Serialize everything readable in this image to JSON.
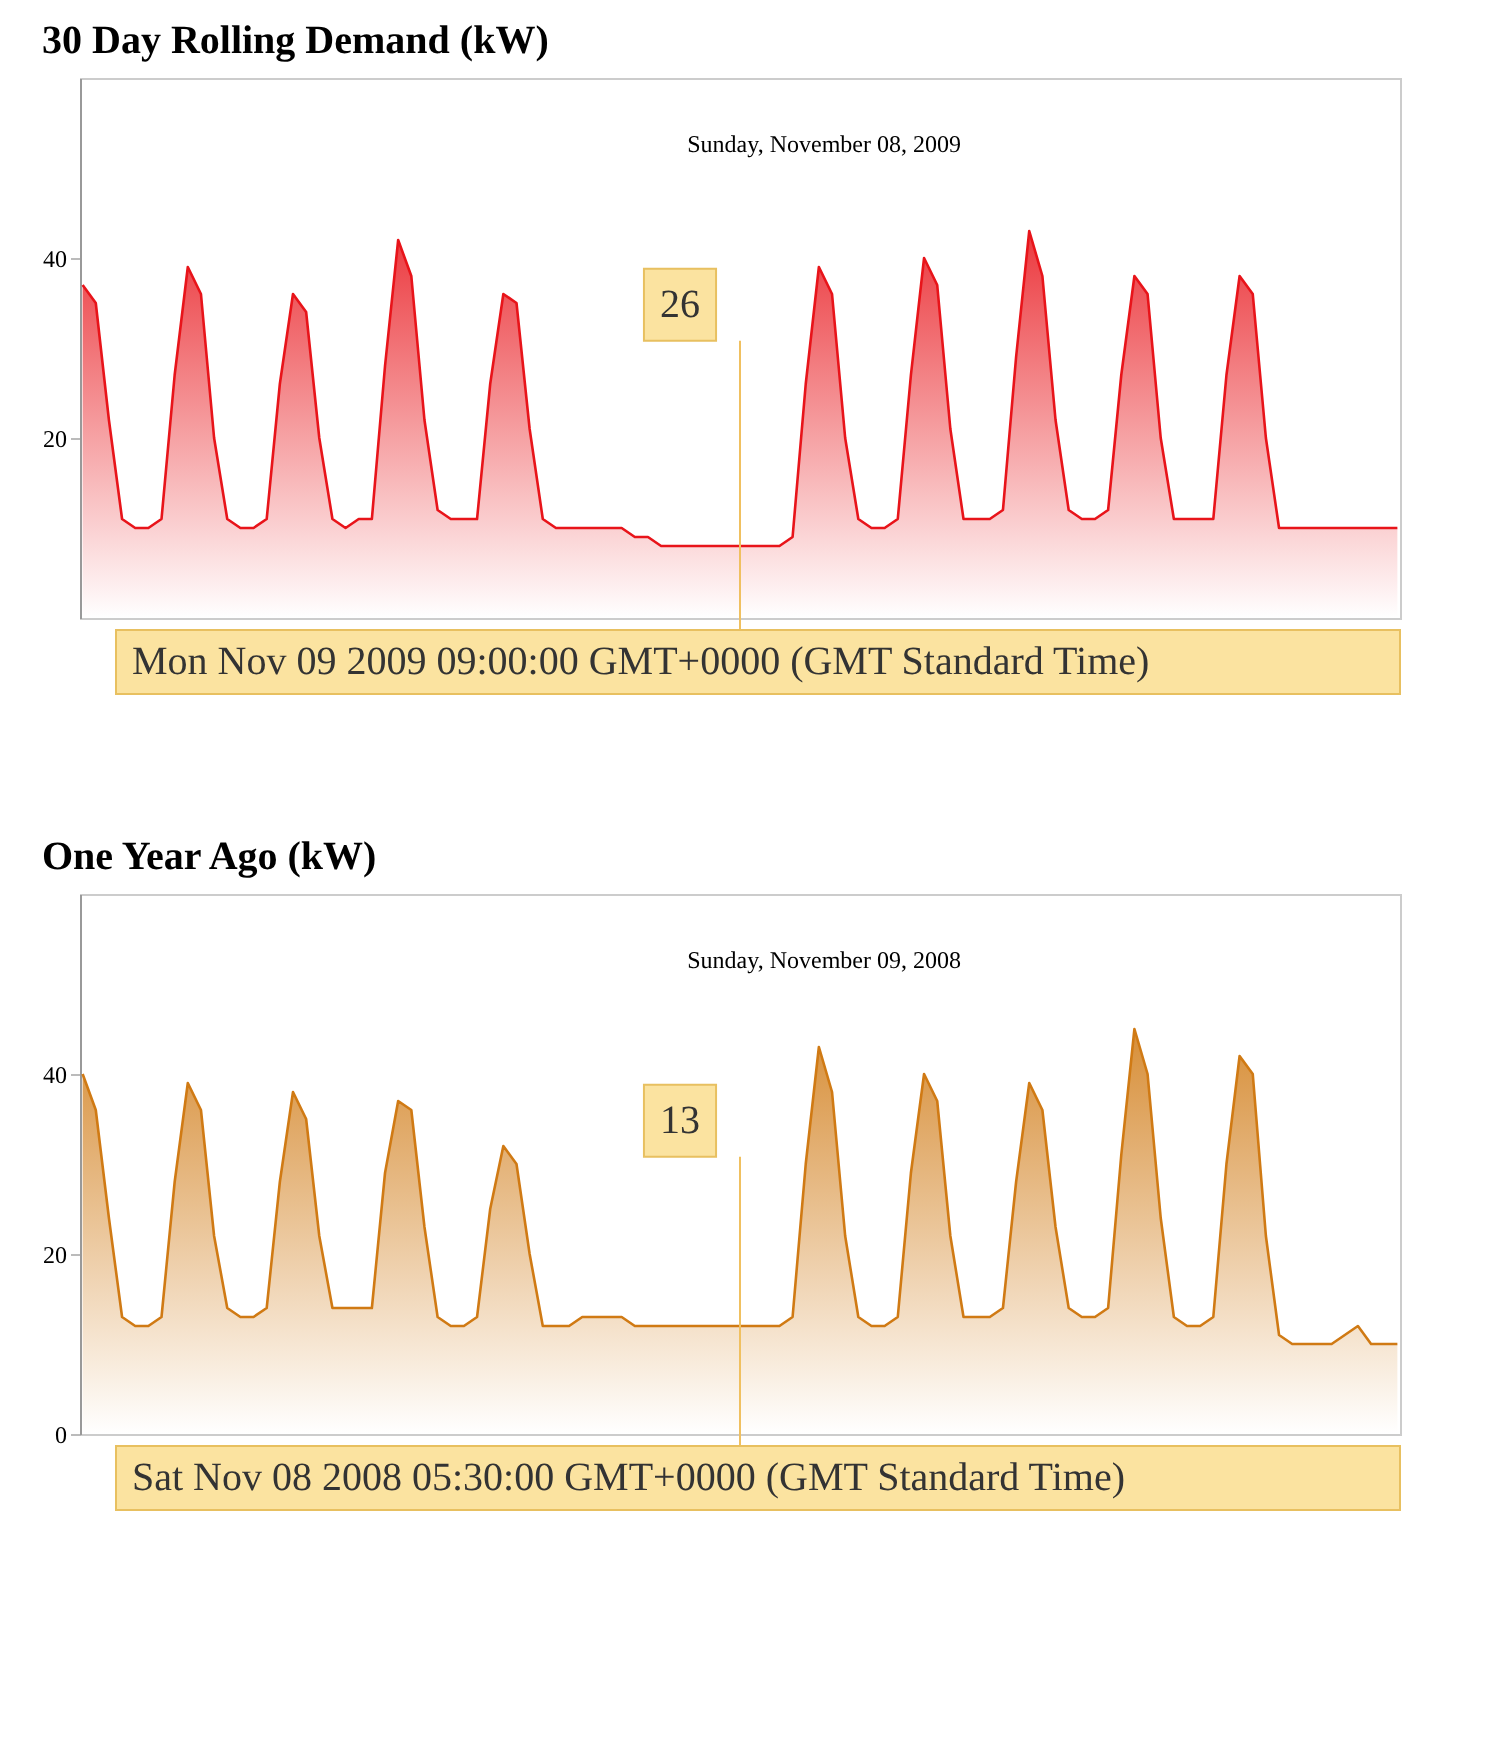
{
  "chart_data": [
    {
      "type": "area",
      "title": "30 Day Rolling Demand (kW)",
      "categories": [
        null,
        null,
        null,
        null,
        null,
        null,
        null,
        null,
        null,
        null,
        null,
        null,
        null,
        null,
        null,
        null,
        null,
        null,
        null,
        null,
        null,
        null,
        null,
        null,
        null,
        null,
        null,
        null,
        null,
        null,
        null,
        null,
        null,
        null,
        null,
        null,
        null,
        null,
        null,
        null,
        null,
        null,
        null,
        null,
        null,
        null,
        null,
        null,
        null,
        null,
        null,
        null,
        null,
        null,
        null,
        null,
        null,
        null,
        null,
        null,
        null,
        null,
        null,
        null,
        null,
        null,
        null,
        null,
        null,
        null,
        null,
        null,
        null,
        null,
        null,
        null,
        null,
        null,
        null,
        null,
        null,
        null,
        null,
        null,
        null,
        null,
        null,
        null,
        null,
        null,
        null,
        null,
        null,
        null,
        null,
        null,
        null,
        null,
        null,
        null,
        null
      ],
      "series": [
        {
          "color": "#e8141a",
          "values": [
            37,
            35,
            22,
            11,
            10,
            10,
            11,
            27,
            39,
            36,
            20,
            11,
            10,
            10,
            11,
            26,
            36,
            34,
            20,
            11,
            10,
            11,
            11,
            28,
            42,
            38,
            22,
            12,
            11,
            11,
            11,
            26,
            36,
            35,
            21,
            11,
            10,
            10,
            10,
            10,
            10,
            10,
            9,
            9,
            8,
            8,
            8,
            8,
            8,
            8,
            8,
            8,
            8,
            8,
            9,
            26,
            39,
            36,
            20,
            11,
            10,
            10,
            11,
            27,
            40,
            37,
            21,
            11,
            11,
            11,
            12,
            29,
            43,
            38,
            22,
            12,
            11,
            11,
            12,
            27,
            38,
            36,
            20,
            11,
            11,
            11,
            11,
            27,
            38,
            36,
            20,
            10,
            10,
            10,
            10,
            10,
            10,
            10,
            10,
            10,
            10
          ]
        }
      ],
      "tick_labels": "y",
      "ylim": [
        0,
        60
      ],
      "yticks": [
        20,
        40
      ],
      "grid": false,
      "annotations": [
        "Sunday, November 08, 2009",
        "26",
        "Mon Nov 09 2009 09:00:00 GMT+0000 (GMT Standard Time)"
      ]
    },
    {
      "type": "area",
      "title": "One Year Ago (kW)",
      "categories": [
        null,
        null,
        null,
        null,
        null,
        null,
        null,
        null,
        null,
        null,
        null,
        null,
        null,
        null,
        null,
        null,
        null,
        null,
        null,
        null,
        null,
        null,
        null,
        null,
        null,
        null,
        null,
        null,
        null,
        null,
        null,
        null,
        null,
        null,
        null,
        null,
        null,
        null,
        null,
        null,
        null,
        null,
        null,
        null,
        null,
        null,
        null,
        null,
        null,
        null,
        null,
        null,
        null,
        null,
        null,
        null,
        null,
        null,
        null,
        null,
        null,
        null,
        null,
        null,
        null,
        null,
        null,
        null,
        null,
        null,
        null,
        null,
        null,
        null,
        null,
        null,
        null,
        null,
        null,
        null,
        null,
        null,
        null,
        null,
        null,
        null,
        null,
        null,
        null,
        null,
        null,
        null,
        null,
        null,
        null,
        null,
        null,
        null,
        null,
        null,
        null
      ],
      "series": [
        {
          "color": "#d07a14",
          "values": [
            40,
            36,
            24,
            13,
            12,
            12,
            13,
            28,
            39,
            36,
            22,
            14,
            13,
            13,
            14,
            28,
            38,
            35,
            22,
            14,
            14,
            14,
            14,
            29,
            37,
            36,
            23,
            13,
            12,
            12,
            13,
            25,
            32,
            30,
            20,
            12,
            12,
            12,
            13,
            13,
            13,
            13,
            12,
            12,
            12,
            12,
            12,
            12,
            12,
            12,
            12,
            12,
            12,
            12,
            13,
            30,
            43,
            38,
            22,
            13,
            12,
            12,
            13,
            29,
            40,
            37,
            22,
            13,
            13,
            13,
            14,
            28,
            39,
            36,
            23,
            14,
            13,
            13,
            14,
            31,
            45,
            40,
            24,
            13,
            12,
            12,
            13,
            30,
            42,
            40,
            22,
            11,
            10,
            10,
            10,
            10,
            11,
            12,
            10,
            10,
            10
          ]
        }
      ],
      "tick_labels": "y",
      "ylim": [
        0,
        60
      ],
      "yticks": [
        0,
        20,
        40
      ],
      "grid": false,
      "annotations": [
        "Sunday, November 09, 2008",
        "13",
        "Sat Nov 08 2008 05:30:00 GMT+0000 (GMT Standard Time)"
      ]
    }
  ]
}
